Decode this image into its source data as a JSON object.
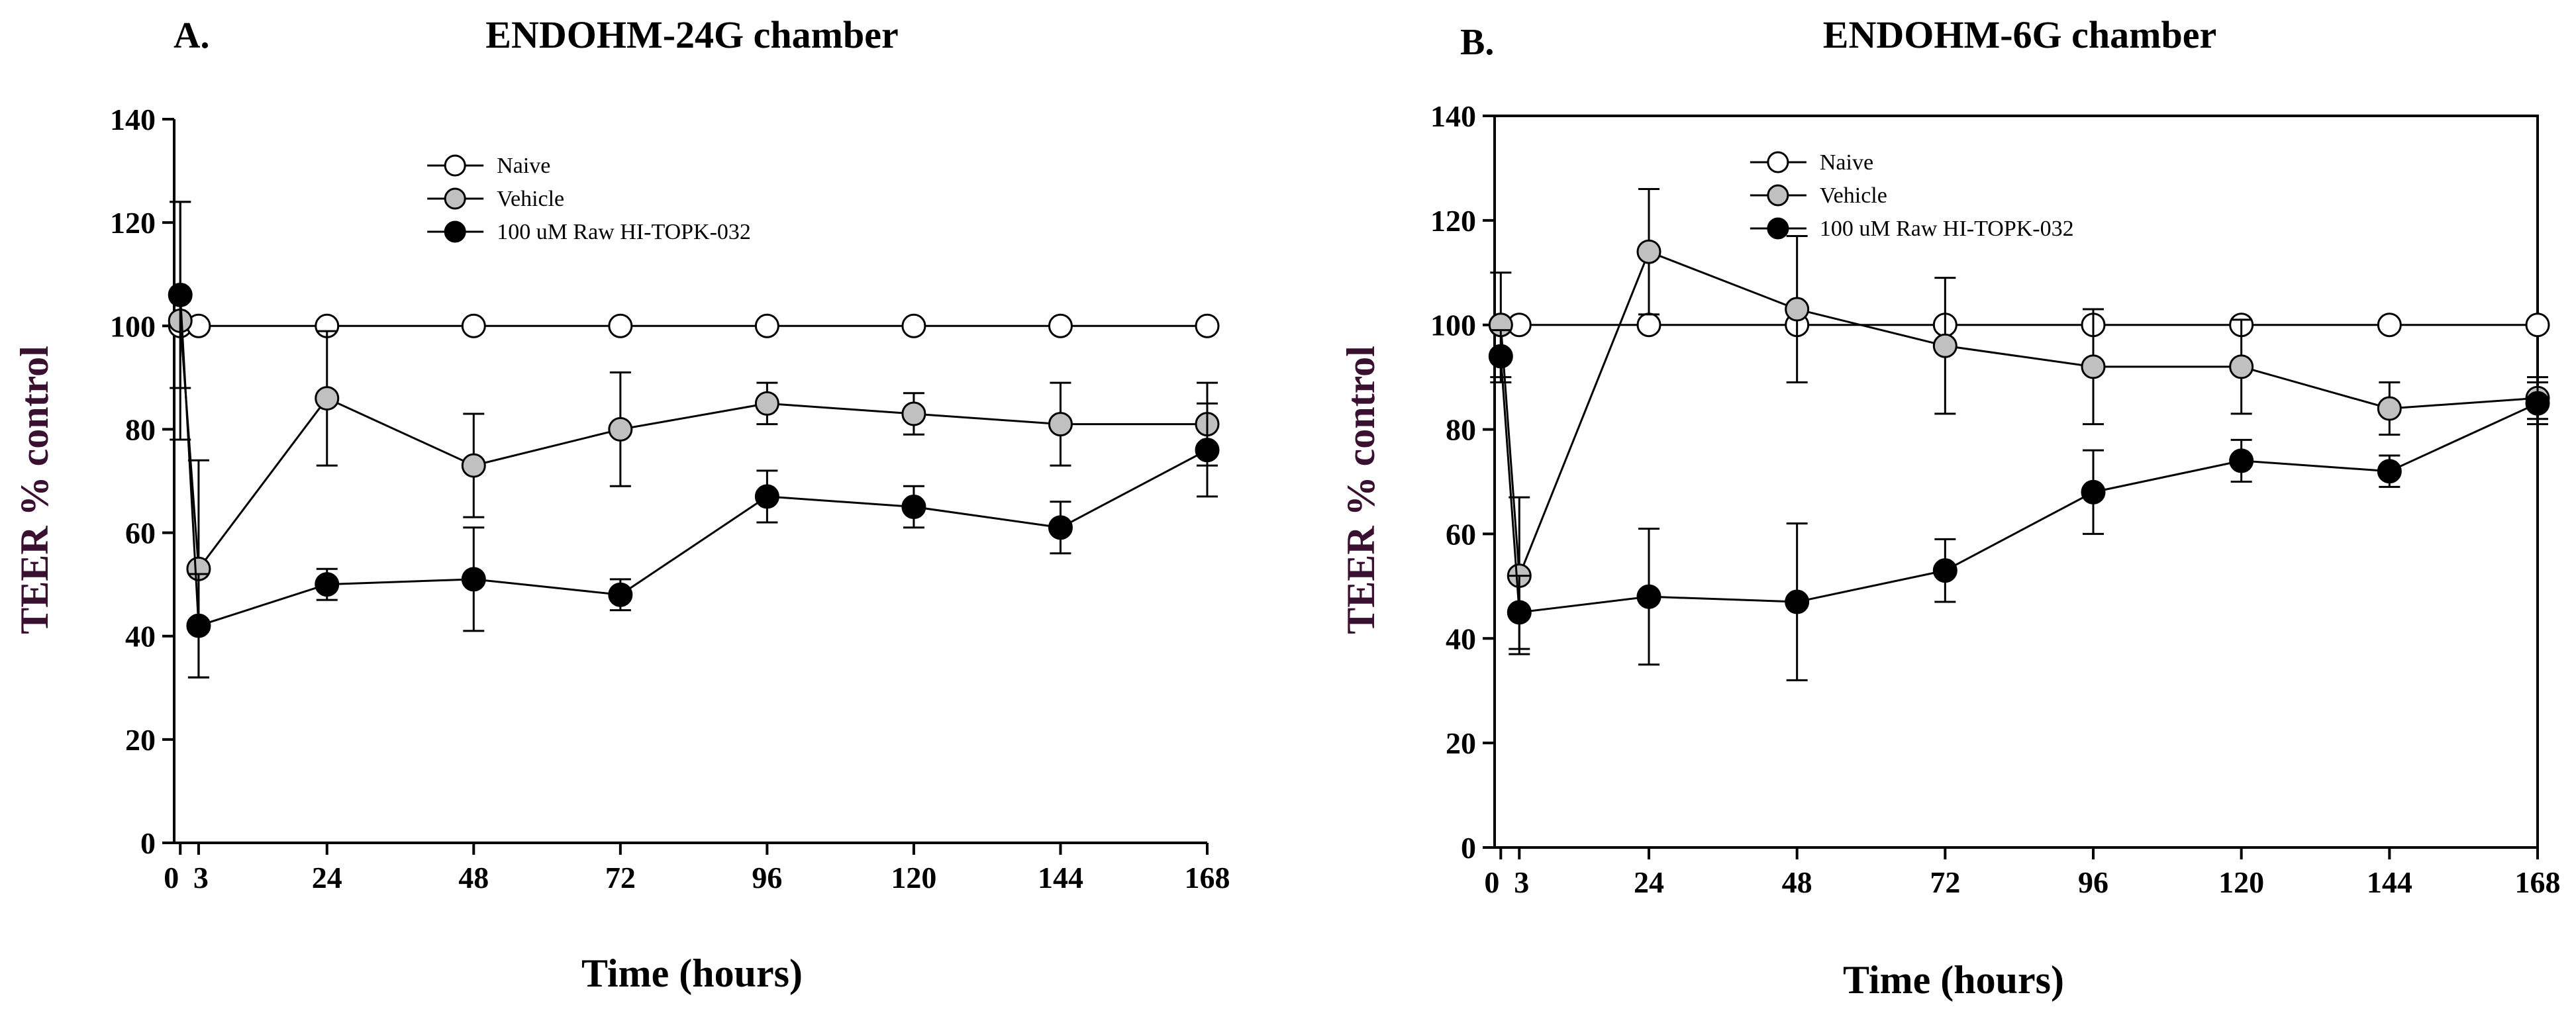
{
  "chart_data": [
    {
      "panel": "A.",
      "title": "ENDOHM-24G chamber",
      "type": "line",
      "xlabel": "Time (hours)",
      "ylabel": "TEER % control",
      "x": [
        0,
        3,
        24,
        48,
        72,
        96,
        120,
        144,
        168
      ],
      "xticks": [
        0,
        3,
        24,
        48,
        72,
        96,
        120,
        144,
        168
      ],
      "xtick_labels": [
        "0",
        "3",
        "24",
        "48",
        "72",
        "96",
        "120",
        "144",
        "168"
      ],
      "xlim": [
        -1,
        168
      ],
      "ylim": [
        0,
        140
      ],
      "yticks": [
        0,
        20,
        40,
        60,
        80,
        100,
        120,
        140
      ],
      "legend_position": "top-right",
      "series": [
        {
          "name": "Naive",
          "color": "#ffffff",
          "values": [
            100,
            100,
            100,
            100,
            100,
            100,
            100,
            100,
            100
          ],
          "errors": [
            0,
            0,
            0,
            0,
            0,
            0,
            0,
            0,
            0
          ]
        },
        {
          "name": "Vehicle",
          "color": "#c0c0c0",
          "values": [
            101,
            53,
            86,
            73,
            80,
            85,
            83,
            81,
            81
          ],
          "errors": [
            23,
            21,
            13,
            10,
            11,
            4,
            4,
            8,
            8
          ]
        },
        {
          "name": "100 uM Raw HI-TOPK-032",
          "color": "#000000",
          "values": [
            106,
            42,
            50,
            51,
            48,
            67,
            65,
            61,
            76
          ],
          "errors": [
            18,
            10,
            3,
            10,
            3,
            5,
            4,
            5,
            9
          ]
        }
      ]
    },
    {
      "panel": "B.",
      "title": "ENDOHM-6G chamber",
      "type": "line",
      "xlabel": "Time (hours)",
      "ylabel": "TEER % control",
      "x": [
        0,
        3,
        24,
        48,
        72,
        96,
        120,
        144,
        168
      ],
      "xticks": [
        0,
        3,
        24,
        48,
        72,
        96,
        120,
        144,
        168
      ],
      "xtick_labels": [
        "0",
        "3",
        "24",
        "48",
        "72",
        "96",
        "120",
        "144",
        "168"
      ],
      "xlim": [
        -1,
        168
      ],
      "ylim": [
        0,
        140
      ],
      "yticks": [
        0,
        20,
        40,
        60,
        80,
        100,
        120,
        140
      ],
      "legend_position": "top-right",
      "series": [
        {
          "name": "Naive",
          "color": "#ffffff",
          "values": [
            100,
            100,
            100,
            100,
            100,
            100,
            100,
            100,
            100
          ],
          "errors": [
            0,
            0,
            0,
            0,
            0,
            0,
            0,
            0,
            0
          ]
        },
        {
          "name": "Vehicle",
          "color": "#c0c0c0",
          "values": [
            100,
            52,
            114,
            103,
            96,
            92,
            92,
            84,
            86
          ],
          "errors": [
            10,
            15,
            12,
            14,
            13,
            11,
            9,
            5,
            4
          ]
        },
        {
          "name": "100 uM Raw HI-TOPK-032",
          "color": "#000000",
          "values": [
            94,
            45,
            48,
            47,
            53,
            68,
            74,
            72,
            85
          ],
          "errors": [
            5,
            7,
            13,
            15,
            6,
            8,
            4,
            3,
            4
          ]
        }
      ]
    }
  ],
  "style": {
    "ylabel_color": "#3a1030",
    "xlabel_color": "#000000"
  }
}
